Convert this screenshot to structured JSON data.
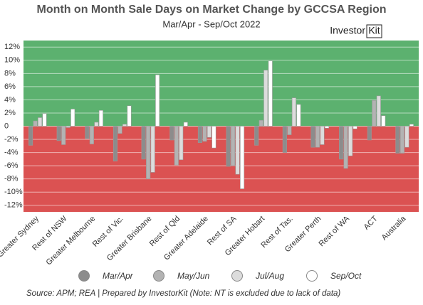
{
  "chart_data": {
    "type": "bar",
    "title": "Month on Month Sale Days on Market Change by GCCSA Region",
    "subtitle": "Mar/Apr - Sep/Oct 2022",
    "logo": {
      "prefix": "Investor",
      "suffix": "Kit"
    },
    "source": "Source: APM; REA | Prepared by InvestorKit (Note: NT is excluded due to lack of data)",
    "categories": [
      "Greater Sydney",
      "Rest of NSW",
      "Greater Melbourne",
      "Rest of Vic.",
      "Greater Brisbane",
      "Rest of Qld",
      "Greater Adelaide",
      "Rest of SA",
      "Greater Hobart",
      "Rest of Tas.",
      "Greater Perth",
      "Rest of WA",
      "ACT",
      "Australia"
    ],
    "series": [
      {
        "name": "Mar/Apr",
        "color": "#8c8c8c",
        "values": [
          -2.9,
          -2.2,
          -1.9,
          -5.3,
          -5.0,
          -2.1,
          -2.5,
          -6.1,
          -2.9,
          -4.0,
          -3.2,
          -5.0,
          -2.1,
          -4.1
        ]
      },
      {
        "name": "May/Jun",
        "color": "#b3b3b3",
        "values": [
          0.8,
          -2.8,
          -2.7,
          -1.1,
          -8.0,
          -5.9,
          -2.3,
          -6.0,
          0.9,
          -1.3,
          -3.2,
          -6.4,
          3.9,
          -4.1
        ]
      },
      {
        "name": "Jul/Aug",
        "color": "#dcdcdc",
        "values": [
          1.3,
          -0.2,
          0.6,
          0.3,
          -7.0,
          -5.1,
          -1.7,
          -7.3,
          8.5,
          4.3,
          -2.8,
          -4.5,
          4.6,
          -3.2
        ]
      },
      {
        "name": "Sep/Oct",
        "color": "#ffffff",
        "values": [
          1.9,
          2.6,
          2.4,
          3.1,
          7.8,
          0.6,
          -3.3,
          -9.5,
          9.9,
          3.3,
          -0.3,
          -0.4,
          1.6,
          0.3
        ]
      }
    ],
    "ylim": [
      -13,
      13
    ],
    "yticks": [
      {
        "value": -12,
        "label": "-12%"
      },
      {
        "value": -10,
        "label": "-10%"
      },
      {
        "value": -8,
        "label": "-8%"
      },
      {
        "value": -6,
        "label": "-6%"
      },
      {
        "value": -4,
        "label": "-4%"
      },
      {
        "value": -2,
        "label": "-2%"
      },
      0,
      {
        "value": 2,
        "label": "2%"
      },
      {
        "value": 4,
        "label": "4%"
      },
      {
        "value": 6,
        "label": "6%"
      },
      {
        "value": 8,
        "label": "8%"
      },
      {
        "value": 10,
        "label": "10%"
      },
      {
        "value": 12,
        "label": "12%"
      }
    ],
    "grid": true,
    "positive_color": "#5cb16f",
    "negative_color": "#db5252"
  }
}
